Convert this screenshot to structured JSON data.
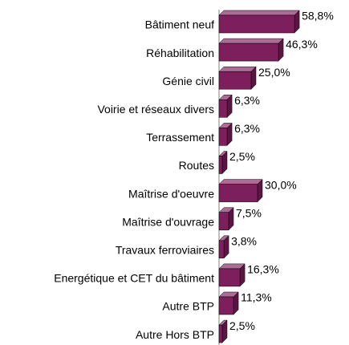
{
  "chart_data": {
    "type": "bar",
    "orientation": "horizontal",
    "three_d": true,
    "categories": [
      "Bâtiment neuf",
      "Réhabilitation",
      "Génie civil",
      "Voirie et réseaux divers",
      "Terrassement",
      "Routes",
      "Maîtrise d'oeuvre",
      "Maîtrise d'ouvrage",
      "Travaux ferroviaires",
      "Energétique et CET du bâtiment",
      "Autre BTP",
      "Autre Hors BTP"
    ],
    "values": [
      58.8,
      46.3,
      25.0,
      6.3,
      6.3,
      2.5,
      30.0,
      7.5,
      3.8,
      16.3,
      11.3,
      2.5
    ],
    "value_labels": [
      "58,8%",
      "46,3%",
      "25,0%",
      "6,3%",
      "6,3%",
      "2,5%",
      "30,0%",
      "7,5%",
      "3,8%",
      "16,3%",
      "11,3%",
      "2,5%"
    ],
    "color": "#7d1f5c"
  }
}
